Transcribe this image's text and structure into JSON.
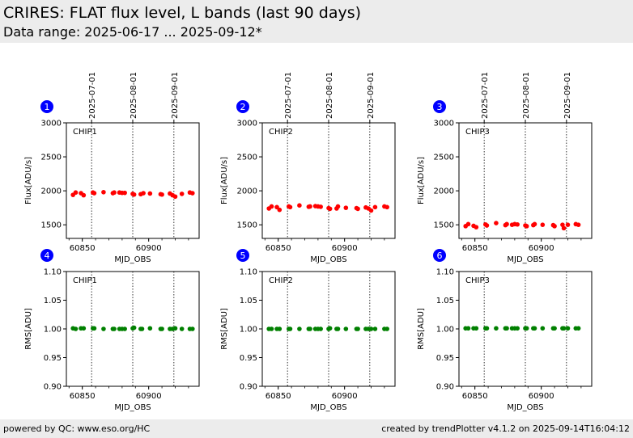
{
  "page": {
    "title": "CRIRES: FLAT flux level, L bands (last 90 days)",
    "subtitle": "Data range: 2025-06-17 ... 2025-09-12*",
    "footer_left": "powered by QC: www.eso.org/HC",
    "footer_right": "created by trendPlotter v4.1.2 on 2025-09-14T16:04:12"
  },
  "colors": {
    "flux": "#ff0000",
    "rms": "#008000",
    "badge": "#0000ff",
    "header_bg": "#ececec"
  },
  "chart_data": [
    {
      "type": "scatter",
      "panel_number": "1",
      "chip_label": "CHIP1",
      "xlabel": "MJD_OBS",
      "ylabel": "Flux[ADU/s]",
      "xlim": [
        60838,
        60938
      ],
      "ylim": [
        1300,
        3000
      ],
      "xticks": [
        60850,
        60900
      ],
      "yticks": [
        1500,
        2000,
        2500,
        3000
      ],
      "date_markers": [
        {
          "mjd": 60857,
          "label": "2025-07-01"
        },
        {
          "mjd": 60888,
          "label": "2025-08-01"
        },
        {
          "mjd": 60919,
          "label": "2025-09-01"
        }
      ],
      "series": [
        {
          "color": "#ff0000",
          "x": [
            60843,
            60845,
            60849,
            60851,
            60858,
            60859,
            60866,
            60873,
            60874,
            60878,
            60880,
            60882,
            60888,
            60889,
            60894,
            60896,
            60901,
            60909,
            60910,
            60916,
            60918,
            60920,
            60925,
            60931,
            60933
          ],
          "y": [
            1940,
            1975,
            1965,
            1935,
            1975,
            1965,
            1980,
            1965,
            1975,
            1975,
            1970,
            1970,
            1955,
            1945,
            1950,
            1965,
            1960,
            1950,
            1945,
            1960,
            1935,
            1915,
            1955,
            1975,
            1965
          ]
        }
      ]
    },
    {
      "type": "scatter",
      "panel_number": "2",
      "chip_label": "CHIP2",
      "xlabel": "MJD_OBS",
      "ylabel": "Flux[ADU/s]",
      "xlim": [
        60838,
        60938
      ],
      "ylim": [
        1300,
        3000
      ],
      "xticks": [
        60850,
        60900
      ],
      "yticks": [
        1500,
        2000,
        2500,
        3000
      ],
      "date_markers": [
        {
          "mjd": 60857,
          "label": "2025-07-01"
        },
        {
          "mjd": 60888,
          "label": "2025-08-01"
        },
        {
          "mjd": 60919,
          "label": "2025-09-01"
        }
      ],
      "series": [
        {
          "color": "#ff0000",
          "x": [
            60843,
            60845,
            60849,
            60851,
            60858,
            60859,
            60866,
            60873,
            60874,
            60878,
            60880,
            60882,
            60888,
            60889,
            60894,
            60895,
            60901,
            60909,
            60910,
            60916,
            60918,
            60920,
            60923,
            60930,
            60932
          ],
          "y": [
            1740,
            1770,
            1760,
            1720,
            1770,
            1760,
            1785,
            1765,
            1770,
            1775,
            1770,
            1765,
            1745,
            1735,
            1740,
            1770,
            1750,
            1745,
            1735,
            1755,
            1740,
            1710,
            1760,
            1770,
            1760
          ]
        }
      ]
    },
    {
      "type": "scatter",
      "panel_number": "3",
      "chip_label": "CHIP3",
      "xlabel": "MJD_OBS",
      "ylabel": "Flux[ADU/s]",
      "xlim": [
        60838,
        60938
      ],
      "ylim": [
        1300,
        3000
      ],
      "xticks": [
        60850,
        60900
      ],
      "yticks": [
        1500,
        2000,
        2500,
        3000
      ],
      "date_markers": [
        {
          "mjd": 60857,
          "label": "2025-07-01"
        },
        {
          "mjd": 60888,
          "label": "2025-08-01"
        },
        {
          "mjd": 60919,
          "label": "2025-09-01"
        }
      ],
      "series": [
        {
          "color": "#ff0000",
          "x": [
            60843,
            60845,
            60849,
            60851,
            60858,
            60859,
            60866,
            60873,
            60874,
            60878,
            60880,
            60882,
            60888,
            60889,
            60894,
            60895,
            60901,
            60909,
            60910,
            60916,
            60917,
            60920,
            60926,
            60928
          ],
          "y": [
            1480,
            1510,
            1485,
            1465,
            1505,
            1490,
            1525,
            1495,
            1510,
            1500,
            1510,
            1505,
            1490,
            1480,
            1495,
            1510,
            1500,
            1495,
            1480,
            1500,
            1450,
            1500,
            1510,
            1500
          ]
        }
      ]
    },
    {
      "type": "scatter",
      "panel_number": "4",
      "chip_label": "CHIP1",
      "xlabel": "MJD_OBS",
      "ylabel": "RMS[ADU]",
      "xlim": [
        60838,
        60938
      ],
      "ylim": [
        0.9,
        1.1
      ],
      "xticks": [
        60850,
        60900
      ],
      "yticks": [
        0.9,
        0.95,
        1.0,
        1.05,
        1.1
      ],
      "date_markers": [
        {
          "mjd": 60857,
          "label": "2025-07-01"
        },
        {
          "mjd": 60888,
          "label": "2025-08-01"
        },
        {
          "mjd": 60919,
          "label": "2025-09-01"
        }
      ],
      "series": [
        {
          "color": "#008000",
          "x": [
            60843,
            60845,
            60849,
            60851,
            60858,
            60859,
            60866,
            60873,
            60874,
            60878,
            60880,
            60882,
            60888,
            60889,
            60894,
            60895,
            60901,
            60909,
            60910,
            60916,
            60918,
            60920,
            60925,
            60931,
            60933
          ],
          "y": [
            1.001,
            1.0,
            1.001,
            1.001,
            1.001,
            1.001,
            1.0,
            1.0,
            1.0,
            1.0,
            1.0,
            1.0,
            1.001,
            1.002,
            1.0,
            1.0,
            1.001,
            1.0,
            1.0,
            1.0,
            1.0,
            1.001,
            1.0,
            1.0,
            1.0
          ]
        }
      ]
    },
    {
      "type": "scatter",
      "panel_number": "5",
      "chip_label": "CHIP2",
      "xlabel": "MJD_OBS",
      "ylabel": "RMS[ADU]",
      "xlim": [
        60838,
        60938
      ],
      "ylim": [
        0.9,
        1.1
      ],
      "xticks": [
        60850,
        60900
      ],
      "yticks": [
        0.9,
        0.95,
        1.0,
        1.05,
        1.1
      ],
      "date_markers": [
        {
          "mjd": 60857,
          "label": "2025-07-01"
        },
        {
          "mjd": 60888,
          "label": "2025-08-01"
        },
        {
          "mjd": 60919,
          "label": "2025-09-01"
        }
      ],
      "series": [
        {
          "color": "#008000",
          "x": [
            60843,
            60845,
            60849,
            60851,
            60858,
            60859,
            60866,
            60873,
            60874,
            60878,
            60880,
            60882,
            60888,
            60889,
            60894,
            60895,
            60901,
            60909,
            60910,
            60916,
            60918,
            60920,
            60923,
            60930,
            60932
          ],
          "y": [
            1.0,
            1.0,
            1.0,
            1.0,
            1.0,
            1.0,
            1.0,
            1.0,
            1.0,
            1.0,
            1.0,
            1.0,
            1.0,
            1.001,
            1.0,
            1.0,
            1.0,
            1.0,
            1.0,
            1.0,
            1.0,
            1.0,
            1.0,
            1.0,
            1.0
          ]
        }
      ]
    },
    {
      "type": "scatter",
      "panel_number": "6",
      "chip_label": "CHIP3",
      "xlabel": "MJD_OBS",
      "ylabel": "RMS[ADU]",
      "xlim": [
        60838,
        60938
      ],
      "ylim": [
        0.9,
        1.1
      ],
      "xticks": [
        60850,
        60900
      ],
      "yticks": [
        0.9,
        0.95,
        1.0,
        1.05,
        1.1
      ],
      "date_markers": [
        {
          "mjd": 60857,
          "label": "2025-07-01"
        },
        {
          "mjd": 60888,
          "label": "2025-08-01"
        },
        {
          "mjd": 60919,
          "label": "2025-09-01"
        }
      ],
      "series": [
        {
          "color": "#008000",
          "x": [
            60843,
            60845,
            60849,
            60851,
            60858,
            60859,
            60866,
            60873,
            60874,
            60878,
            60880,
            60882,
            60888,
            60889,
            60894,
            60895,
            60901,
            60909,
            60910,
            60916,
            60917,
            60920,
            60926,
            60928
          ],
          "y": [
            1.001,
            1.001,
            1.001,
            1.001,
            1.001,
            1.001,
            1.001,
            1.001,
            1.001,
            1.001,
            1.001,
            1.001,
            1.001,
            1.001,
            1.001,
            1.001,
            1.001,
            1.001,
            1.001,
            1.001,
            1.001,
            1.001,
            1.001,
            1.001
          ]
        }
      ]
    }
  ]
}
